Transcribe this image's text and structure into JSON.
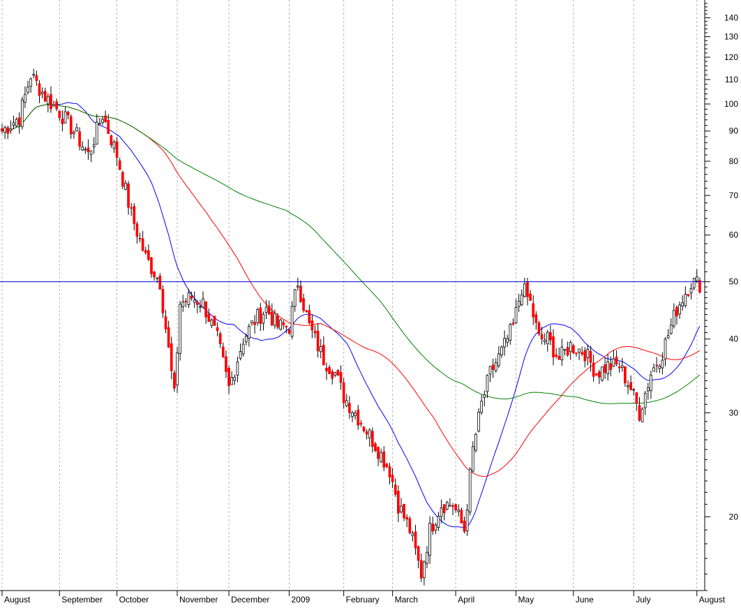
{
  "chart_data": {
    "type": "candlestick",
    "y_scale": "log",
    "ylim": [
      15.0,
      150
    ],
    "y_ticks": [
      20,
      30,
      40,
      50,
      60,
      70,
      80,
      90,
      100,
      110,
      120,
      130,
      140
    ],
    "y_minor_ticks": [
      15,
      16,
      17,
      18,
      19,
      21,
      22,
      23,
      24,
      25,
      26,
      27,
      28,
      29,
      31,
      32,
      33,
      34,
      35,
      36,
      37,
      38,
      39,
      41,
      42,
      43,
      44,
      45,
      46,
      47,
      48,
      49,
      52,
      54,
      56,
      58,
      62,
      64,
      66,
      68,
      72,
      74,
      76,
      78,
      82,
      84,
      86,
      88,
      92,
      94,
      96,
      98,
      102,
      104,
      106,
      108,
      112,
      114,
      116,
      118,
      122,
      124,
      126,
      128,
      132,
      134,
      136,
      138,
      142,
      144,
      146,
      148
    ],
    "x_labels": [
      "August",
      "September",
      "October",
      "November",
      "December",
      "2009",
      "February",
      "March",
      "April",
      "May",
      "June",
      "July",
      "August"
    ],
    "x_label_positions": [
      0,
      20,
      40,
      61,
      79,
      100,
      119,
      136,
      158,
      179,
      199,
      220,
      242
    ],
    "n_periods": 244,
    "horizontal_line": 50,
    "grid": "vertical dashed at month starts",
    "colors": {
      "up_candle": "#ffffff",
      "down_candle": "#ff0000",
      "wick": "#000000",
      "ma_short": "#0000ff",
      "ma_medium": "#ff0000",
      "ma_long": "#008000",
      "hline": "#0000cc",
      "grid": "#b4b4b4"
    },
    "series": [
      {
        "type": "moving_average",
        "color": "#0000ff",
        "window": 20
      },
      {
        "type": "moving_average",
        "color": "#ff0000",
        "window": 50
      },
      {
        "type": "moving_average",
        "color": "#008000",
        "window": 100
      }
    ],
    "ohlc_anchors": [
      [
        0,
        90
      ],
      [
        6,
        95
      ],
      [
        10,
        112
      ],
      [
        15,
        103
      ],
      [
        20,
        97
      ],
      [
        25,
        90
      ],
      [
        30,
        82
      ],
      [
        35,
        96
      ],
      [
        40,
        82
      ],
      [
        45,
        65
      ],
      [
        50,
        55
      ],
      [
        55,
        50
      ],
      [
        60,
        32
      ],
      [
        62,
        46
      ],
      [
        66,
        47
      ],
      [
        70,
        46
      ],
      [
        75,
        40
      ],
      [
        79,
        33
      ],
      [
        84,
        40
      ],
      [
        88,
        43
      ],
      [
        92,
        45
      ],
      [
        96,
        42
      ],
      [
        100,
        42
      ],
      [
        103,
        50
      ],
      [
        107,
        42
      ],
      [
        112,
        37
      ],
      [
        116,
        35
      ],
      [
        119,
        32
      ],
      [
        123,
        30
      ],
      [
        127,
        28
      ],
      [
        131,
        26
      ],
      [
        135,
        24
      ],
      [
        138,
        21
      ],
      [
        142,
        19
      ],
      [
        146,
        16
      ],
      [
        149,
        19
      ],
      [
        153,
        21
      ],
      [
        157,
        21
      ],
      [
        161,
        19
      ],
      [
        164,
        26
      ],
      [
        167,
        31
      ],
      [
        170,
        35
      ],
      [
        174,
        38
      ],
      [
        178,
        42
      ],
      [
        181,
        49
      ],
      [
        184,
        46
      ],
      [
        187,
        40
      ],
      [
        190,
        40
      ],
      [
        194,
        37
      ],
      [
        198,
        39
      ],
      [
        203,
        38
      ],
      [
        207,
        35
      ],
      [
        211,
        36
      ],
      [
        215,
        36
      ],
      [
        219,
        33
      ],
      [
        222,
        30
      ],
      [
        226,
        35
      ],
      [
        230,
        38
      ],
      [
        235,
        45
      ],
      [
        238,
        48
      ],
      [
        240,
        50
      ]
    ]
  }
}
